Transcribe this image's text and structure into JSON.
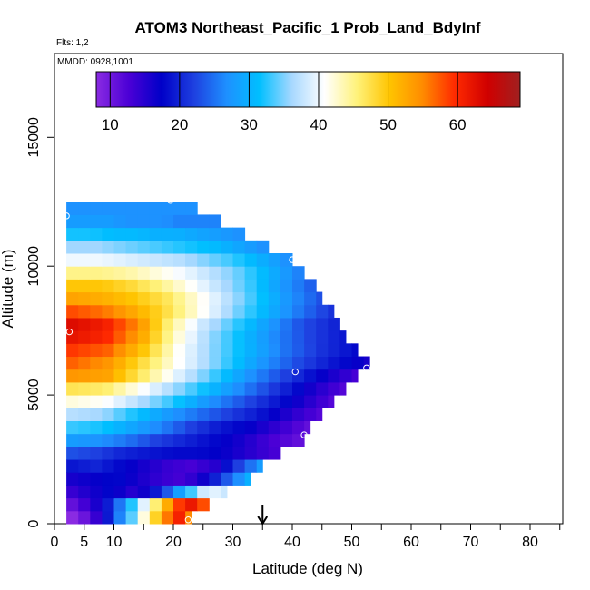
{
  "title": "ATOM3 Northeast_Pacific_1 Prob_Land_BdyInf",
  "flights_label": "Flts: 1,2",
  "mmdd_label": "MMDD: 0928,1001",
  "colorbar": {
    "ticks": [
      "10",
      "20",
      "30",
      "40",
      "50",
      "60"
    ],
    "tick_values": [
      10,
      20,
      30,
      40,
      50,
      60
    ],
    "range": [
      8,
      69
    ],
    "stops": [
      "#8a2be2",
      "#4b00d6",
      "#0000c8",
      "#1e40e0",
      "#1e90ff",
      "#00bfff",
      "#a7d8ff",
      "#ffffff",
      "#fff27a",
      "#ffc400",
      "#ff8c00",
      "#ff2a00",
      "#d00000",
      "#a02020"
    ]
  },
  "chart_data": {
    "type": "heatmap",
    "title": "ATOM3 Northeast_Pacific_1 Prob_Land_BdyInf",
    "xlabel": "Latitude (deg N)",
    "ylabel": "Altitude (m)",
    "xlim": [
      0,
      85
    ],
    "ylim": [
      0,
      17500
    ],
    "x_ticks": [
      "0",
      "5",
      "10",
      "20",
      "30",
      "40",
      "50",
      "60",
      "70",
      "80"
    ],
    "x_tick_values": [
      0,
      5,
      10,
      20,
      30,
      40,
      50,
      60,
      70,
      80
    ],
    "y_ticks": [
      "0",
      "5000",
      "10000",
      "15000"
    ],
    "y_tick_values": [
      0,
      5000,
      10000,
      15000
    ],
    "alt_bin_m": 500,
    "bins": [
      {
        "alt": 0,
        "lat_max": 23,
        "values": [
          8,
          11,
          16,
          24,
          34,
          44,
          52,
          62,
          55
        ]
      },
      {
        "alt": 500,
        "lat_max": 26,
        "values": [
          11,
          14,
          18,
          26,
          36,
          45,
          54,
          63,
          58
        ]
      },
      {
        "alt": 1000,
        "lat_max": 29,
        "values": [
          14,
          16,
          18,
          15,
          17,
          24,
          32,
          40,
          38
        ]
      },
      {
        "alt": 1500,
        "lat_max": 33,
        "values": [
          16,
          17,
          18,
          16,
          14,
          13,
          17,
          24,
          30
        ]
      },
      {
        "alt": 2000,
        "lat_max": 35,
        "values": [
          19,
          20,
          18,
          16,
          14,
          13,
          15,
          22,
          28
        ]
      },
      {
        "alt": 2500,
        "lat_max": 38,
        "values": [
          23,
          22,
          20,
          19,
          18,
          18,
          17,
          15,
          13
        ]
      },
      {
        "alt": 3000,
        "lat_max": 42,
        "values": [
          28,
          27,
          25,
          22,
          20,
          18,
          16,
          13,
          11
        ]
      },
      {
        "alt": 3500,
        "lat_max": 43,
        "values": [
          33,
          32,
          29,
          26,
          22,
          19,
          17,
          14,
          11
        ]
      },
      {
        "alt": 4000,
        "lat_max": 45,
        "values": [
          37,
          36,
          32,
          28,
          25,
          22,
          19,
          15,
          12
        ]
      },
      {
        "alt": 4500,
        "lat_max": 47,
        "values": [
          42,
          41,
          37,
          33,
          28,
          24,
          20,
          16,
          12
        ]
      },
      {
        "alt": 5000,
        "lat_max": 49,
        "values": [
          47,
          46,
          41,
          36,
          31,
          26,
          21,
          16,
          12
        ]
      },
      {
        "alt": 5500,
        "lat_max": 51,
        "values": [
          54,
          53,
          46,
          39,
          33,
          27,
          22,
          17,
          13
        ]
      },
      {
        "alt": 6000,
        "lat_max": 53,
        "values": [
          57,
          54,
          47,
          40,
          34,
          28,
          23,
          19,
          16
        ]
      },
      {
        "alt": 6500,
        "lat_max": 51,
        "values": [
          59,
          57,
          50,
          41,
          35,
          30,
          25,
          21,
          18
        ]
      },
      {
        "alt": 7000,
        "lat_max": 49,
        "values": [
          62,
          60,
          53,
          43,
          36,
          31,
          26,
          22,
          19
        ]
      },
      {
        "alt": 7500,
        "lat_max": 48,
        "values": [
          63,
          61,
          55,
          45,
          38,
          33,
          28,
          23,
          20
        ]
      },
      {
        "alt": 8000,
        "lat_max": 47,
        "values": [
          58,
          56,
          52,
          47,
          41,
          35,
          30,
          25,
          21
        ]
      },
      {
        "alt": 8500,
        "lat_max": 45,
        "values": [
          53,
          52,
          50,
          47,
          42,
          37,
          32,
          27,
          23
        ]
      },
      {
        "alt": 9000,
        "lat_max": 44,
        "values": [
          50,
          50,
          48,
          45,
          41,
          37,
          33,
          28,
          24
        ]
      },
      {
        "alt": 9500,
        "lat_max": 42,
        "values": [
          45,
          45,
          44,
          42,
          40,
          37,
          34,
          30,
          26
        ]
      },
      {
        "alt": 10000,
        "lat_max": 40,
        "values": [
          40,
          40,
          39,
          38,
          37,
          35,
          33,
          30,
          27
        ]
      },
      {
        "alt": 10500,
        "lat_max": 36,
        "values": [
          36,
          36,
          35,
          34,
          33,
          32,
          31,
          29,
          27
        ]
      },
      {
        "alt": 11000,
        "lat_max": 32,
        "values": [
          32,
          32,
          31,
          31,
          30,
          30,
          29,
          28,
          27
        ]
      },
      {
        "alt": 11500,
        "lat_max": 28,
        "values": [
          28,
          28,
          28,
          27,
          27,
          27,
          26,
          26,
          26
        ]
      },
      {
        "alt": 12000,
        "lat_max": 24,
        "values": [
          27,
          27,
          27,
          27,
          27,
          27,
          27,
          27,
          27
        ]
      }
    ],
    "flight_markers": [
      {
        "lat": 1.0,
        "alt": 150
      },
      {
        "lat": 22.5,
        "alt": 150
      },
      {
        "lat": 42,
        "alt": 3450
      },
      {
        "lat": 40.5,
        "alt": 5900
      },
      {
        "lat": 52.5,
        "alt": 6050
      },
      {
        "lat": 2.5,
        "alt": 7450
      },
      {
        "lat": 40,
        "alt": 10250
      },
      {
        "lat": 2,
        "alt": 11950
      },
      {
        "lat": 19.5,
        "alt": 12550
      }
    ],
    "arrow_lat": 35
  }
}
